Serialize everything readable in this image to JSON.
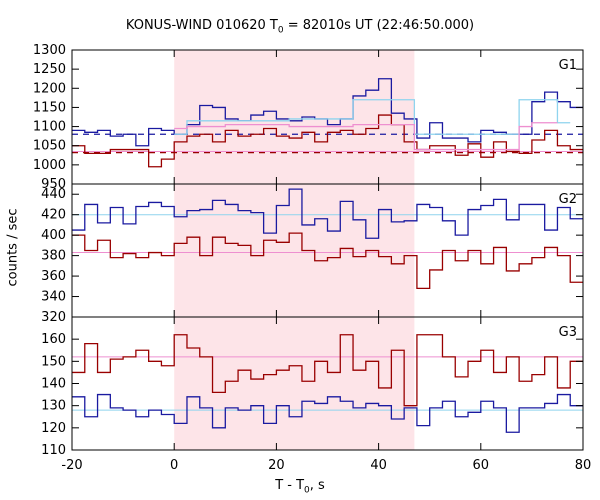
{
  "title_main": "KONUS-WIND 010620 T",
  "title_sub": "0",
  "title_rest": " = 82010s UT (22:46:50.000)",
  "xlabel_main": "T - T",
  "xlabel_sub": "0",
  "xlabel_rest": ", s",
  "ylabel": "counts / sec",
  "colors": {
    "blue": "#1a1aa0",
    "red": "#990000",
    "cyan": "#8fd4ee",
    "pink": "#ee8fd0",
    "shade": "#fde4e8"
  },
  "chart_data": {
    "type": "line",
    "xlim": [
      -20,
      80
    ],
    "xticks": [
      "-20",
      "0",
      "20",
      "40",
      "60",
      "80"
    ],
    "shaded_interval": [
      0,
      47
    ],
    "panels": [
      {
        "label": "G1",
        "ylim": [
          950,
          1300
        ],
        "yticks": [
          "950",
          "1000",
          "1050",
          "1100",
          "1150",
          "1200",
          "1250",
          "1300"
        ],
        "series": [
          {
            "color": "blue",
            "edges": [
              -20,
              -17.5,
              -15,
              -12.5,
              -10,
              -7.5,
              -5,
              -2.5,
              0,
              2.5,
              5,
              7.5,
              10,
              12.5,
              15,
              17.5,
              20,
              22.5,
              25,
              27.5,
              30,
              32.5,
              35,
              37.5,
              40,
              42.5,
              45,
              47.5,
              50,
              52.5,
              55,
              57.5,
              60,
              62.5,
              65,
              67.5,
              70,
              72.5,
              75,
              77.5,
              80
            ],
            "values": [
              1090,
              1085,
              1090,
              1075,
              1080,
              1050,
              1095,
              1090,
              1080,
              1105,
              1155,
              1150,
              1120,
              1115,
              1130,
              1140,
              1120,
              1115,
              1125,
              1120,
              1105,
              1120,
              1180,
              1195,
              1225,
              1135,
              1120,
              1070,
              1110,
              1070,
              1070,
              1060,
              1090,
              1085,
              1080,
              1080,
              1165,
              1190,
              1165,
              1150
            ]
          },
          {
            "color": "red",
            "edges": [
              -20,
              -17.5,
              -15,
              -12.5,
              -10,
              -7.5,
              -5,
              -2.5,
              0,
              2.5,
              5,
              7.5,
              10,
              12.5,
              15,
              17.5,
              20,
              22.5,
              25,
              27.5,
              30,
              32.5,
              35,
              37.5,
              40,
              42.5,
              45,
              47.5,
              50,
              52.5,
              55,
              57.5,
              60,
              62.5,
              65,
              67.5,
              70,
              72.5,
              75,
              77.5,
              80
            ],
            "values": [
              1050,
              1030,
              1030,
              1040,
              1040,
              1040,
              995,
              1015,
              1060,
              1075,
              1080,
              1060,
              1090,
              1075,
              1080,
              1095,
              1075,
              1070,
              1085,
              1060,
              1085,
              1090,
              1080,
              1095,
              1130,
              1105,
              1060,
              1040,
              1050,
              1050,
              1025,
              1055,
              1020,
              1060,
              1035,
              1030,
              1065,
              1090,
              1050,
              1040
            ]
          },
          {
            "color": "cyan",
            "edges": [
              0,
              2.5,
              10,
              22.5,
              35,
              47,
              67.5,
              75,
              77.5
            ],
            "values": [
              1080,
              1115,
              1115,
              1120,
              1170,
              1080,
              1170,
              1110
            ]
          },
          {
            "color": "pink",
            "edges": [
              0,
              2.5,
              10,
              22.5,
              35,
              47,
              67.5,
              70,
              75
            ],
            "values": [
              1095,
              1100,
              1105,
              1100,
              1105,
              1040,
              1100,
              1110
            ]
          }
        ],
        "dashed": [
          {
            "color": "blue",
            "value": 1080
          },
          {
            "color": "red",
            "value": 1032
          }
        ],
        "flat": [
          {
            "color": "pink",
            "value": 1035
          }
        ]
      },
      {
        "label": "G2",
        "ylim": [
          320,
          450
        ],
        "yticks": [
          "320",
          "340",
          "360",
          "380",
          "400",
          "420",
          "440"
        ],
        "series": [
          {
            "color": "blue",
            "edges": [
              -20,
              -17.5,
              -15,
              -12.5,
              -10,
              -7.5,
              -5,
              -2.5,
              0,
              2.5,
              5,
              7.5,
              10,
              12.5,
              15,
              17.5,
              20,
              22.5,
              25,
              27.5,
              30,
              32.5,
              35,
              37.5,
              40,
              42.5,
              45,
              47.5,
              50,
              52.5,
              55,
              57.5,
              60,
              62.5,
              65,
              67.5,
              70,
              72.5,
              75,
              77.5,
              80
            ],
            "values": [
              405,
              430,
              412,
              427,
              411,
              428,
              432,
              428,
              418,
              424,
              425,
              434,
              430,
              424,
              422,
              402,
              429,
              445,
              410,
              416,
              404,
              433,
              415,
              397,
              425,
              413,
              414,
              430,
              427,
              414,
              400,
              425,
              429,
              435,
              415,
              430,
              430,
              405,
              427,
              416
            ]
          },
          {
            "color": "red",
            "edges": [
              -20,
              -17.5,
              -15,
              -12.5,
              -10,
              -7.5,
              -5,
              -2.5,
              0,
              2.5,
              5,
              7.5,
              10,
              12.5,
              15,
              17.5,
              20,
              22.5,
              25,
              27.5,
              30,
              32.5,
              35,
              37.5,
              40,
              42.5,
              45,
              47.5,
              50,
              52.5,
              55,
              57.5,
              60,
              62.5,
              65,
              67.5,
              70,
              72.5,
              75,
              77.5,
              80
            ],
            "values": [
              400,
              385,
              395,
              378,
              382,
              378,
              383,
              380,
              392,
              398,
              380,
              398,
              392,
              390,
              380,
              395,
              393,
              402,
              385,
              375,
              378,
              387,
              379,
              385,
              379,
              372,
              380,
              348,
              366,
              385,
              375,
              385,
              372,
              388,
              365,
              372,
              378,
              388,
              380,
              354
            ]
          }
        ],
        "dashed": [],
        "flat": [
          {
            "color": "cyan",
            "value": 420
          },
          {
            "color": "pink",
            "value": 383
          }
        ]
      },
      {
        "label": "G3",
        "ylim": [
          110,
          170
        ],
        "yticks": [
          "110",
          "120",
          "130",
          "140",
          "150",
          "160"
        ],
        "series": [
          {
            "color": "red",
            "edges": [
              -20,
              -17.5,
              -15,
              -12.5,
              -10,
              -7.5,
              -5,
              -2.5,
              0,
              2.5,
              5,
              7.5,
              10,
              12.5,
              15,
              17.5,
              20,
              22.5,
              25,
              27.5,
              30,
              32.5,
              35,
              37.5,
              40,
              42.5,
              45,
              47.5,
              50,
              52.5,
              55,
              57.5,
              60,
              62.5,
              65,
              67.5,
              70,
              72.5,
              75,
              77.5,
              80
            ],
            "values": [
              145,
              158,
              145,
              151,
              152,
              155,
              150,
              148,
              162,
              156,
              152,
              136,
              141,
              146,
              142,
              144,
              146,
              148,
              141,
              150,
              145,
              162,
              146,
              150,
              138,
              155,
              130,
              162,
              162,
              152,
              143,
              150,
              155,
              145,
              152,
              141,
              144,
              152,
              138,
              150
            ]
          },
          {
            "color": "blue",
            "edges": [
              -20,
              -17.5,
              -15,
              -12.5,
              -10,
              -7.5,
              -5,
              -2.5,
              0,
              2.5,
              5,
              7.5,
              10,
              12.5,
              15,
              17.5,
              20,
              22.5,
              25,
              27.5,
              30,
              32.5,
              35,
              37.5,
              40,
              42.5,
              45,
              47.5,
              50,
              52.5,
              55,
              57.5,
              60,
              62.5,
              65,
              67.5,
              70,
              72.5,
              75,
              77.5,
              80
            ],
            "values": [
              134,
              125,
              135,
              129,
              128,
              125,
              128,
              126,
              122,
              134,
              129,
              120,
              129,
              128,
              130,
              122,
              130,
              125,
              132,
              131,
              134,
              132,
              129,
              131,
              130,
              124,
              129,
              121,
              129,
              132,
              125,
              127,
              132,
              129,
              118,
              129,
              129,
              131,
              135,
              130
            ]
          }
        ],
        "dashed": [],
        "flat": [
          {
            "color": "pink",
            "value": 152
          },
          {
            "color": "cyan",
            "value": 128
          }
        ]
      }
    ]
  }
}
